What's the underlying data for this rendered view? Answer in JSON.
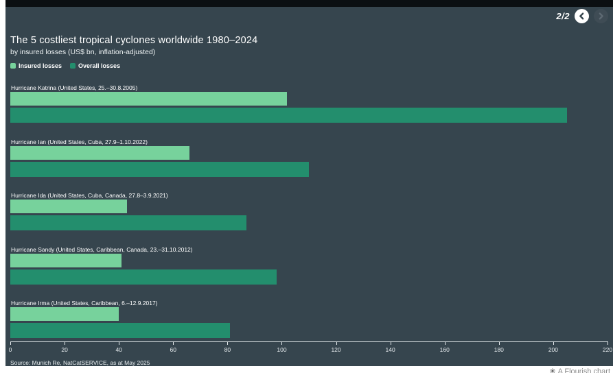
{
  "page": {
    "pagination": {
      "label": "2/2"
    },
    "credit": {
      "glyph": "✳",
      "text": "A Flourish chart"
    }
  },
  "colors": {
    "background": "#36454e",
    "topbar": "#0b0f12",
    "insured": "#77d29c",
    "overall": "#238e6d",
    "text": "#ffffff"
  },
  "chart_data": {
    "type": "bar",
    "orientation": "horizontal",
    "title": "The 5 costliest tropical cyclones worldwide 1980–2024",
    "subtitle": "by insured losses (US$ bn, inflation-adjusted)",
    "categories": [
      "Hurricane Katrina (United States, 25.–30.8.2005)",
      "Hurricane Ian (United States, Cuba, 27.9–1.10.2022)",
      "Hurricane Ida (United States, Cuba, Canada, 27.8–3.9.2021)",
      "Hurricane Sandy (United States, Caribbean, Canada, 23.–31.10.2012)",
      "Hurricane Irma (United States, Caribbean, 6.–12.9.2017)"
    ],
    "series": [
      {
        "name": "Insured losses",
        "color": "#77d29c",
        "values": [
          102,
          66,
          43,
          41,
          40
        ]
      },
      {
        "name": "Overall losses",
        "color": "#238e6d",
        "values": [
          205,
          110,
          87,
          98,
          81
        ]
      }
    ],
    "x_axis": {
      "min": 0,
      "max": 220,
      "ticks": [
        0,
        20,
        40,
        60,
        80,
        100,
        120,
        140,
        160,
        180,
        200,
        220
      ]
    },
    "grid": false,
    "legend_position": "top-left",
    "source": "Source: Munich Re, NatCatSERVICE, as at May 2025"
  }
}
